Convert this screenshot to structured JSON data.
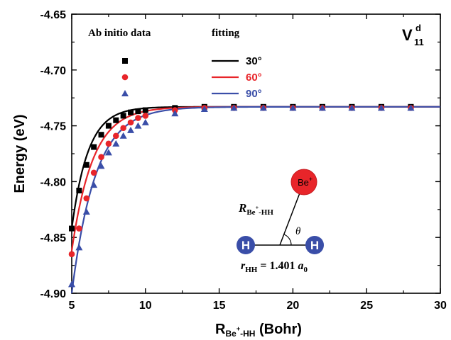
{
  "chart_data": {
    "type": "scatter",
    "xlabel_main": "R",
    "xlabel_sub": "Be",
    "xlabel_sub_sup": "+",
    "xlabel_sub_tail": "-HH",
    "xlabel_unit": " (Bohr)",
    "ylabel": "Energy (eV)",
    "xlim": [
      5,
      30
    ],
    "ylim": [
      -4.9,
      -4.65
    ],
    "xticks": [
      5,
      10,
      15,
      20,
      25,
      30
    ],
    "xtick_labels": [
      "5",
      "10",
      "15",
      "20",
      "25",
      "30"
    ],
    "yticks": [
      -4.9,
      -4.85,
      -4.8,
      -4.75,
      -4.7,
      -4.65
    ],
    "ytick_labels": [
      "-4.90",
      "-4.85",
      "-4.80",
      "-4.75",
      "-4.70",
      "-4.65"
    ],
    "grid": false,
    "legend_placement": "top-left",
    "legend_header_data": "Ab initio data",
    "legend_header_fit": "fitting",
    "corner_label_main": "V",
    "corner_label_sup": "d",
    "corner_label_sub": "11",
    "series": [
      {
        "name": "30°",
        "color": "#000000",
        "marker": "square",
        "points": [
          [
            5.0,
            -4.842
          ],
          [
            5.5,
            -4.808
          ],
          [
            6.0,
            -4.785
          ],
          [
            6.5,
            -4.769
          ],
          [
            7.0,
            -4.758
          ],
          [
            7.5,
            -4.75
          ],
          [
            8.0,
            -4.745
          ],
          [
            8.5,
            -4.741
          ],
          [
            9.0,
            -4.738
          ],
          [
            9.5,
            -4.737
          ],
          [
            10.0,
            -4.736
          ],
          [
            12.0,
            -4.734
          ],
          [
            14.0,
            -4.733
          ],
          [
            16.0,
            -4.733
          ],
          [
            18.0,
            -4.733
          ],
          [
            20.0,
            -4.733
          ],
          [
            22.0,
            -4.733
          ],
          [
            24.0,
            -4.733
          ],
          [
            26.0,
            -4.733
          ],
          [
            28.0,
            -4.733
          ]
        ],
        "fit_rate": 0.9
      },
      {
        "name": "60°",
        "color": "#e8252a",
        "marker": "circle",
        "points": [
          [
            5.0,
            -4.865
          ],
          [
            5.5,
            -4.842
          ],
          [
            6.0,
            -4.815
          ],
          [
            6.5,
            -4.792
          ],
          [
            7.0,
            -4.778
          ],
          [
            7.5,
            -4.766
          ],
          [
            8.0,
            -4.759
          ],
          [
            8.5,
            -4.752
          ],
          [
            9.0,
            -4.747
          ],
          [
            9.5,
            -4.743
          ],
          [
            10.0,
            -4.741
          ],
          [
            12.0,
            -4.736
          ],
          [
            14.0,
            -4.734
          ],
          [
            16.0,
            -4.734
          ],
          [
            18.0,
            -4.734
          ],
          [
            20.0,
            -4.734
          ],
          [
            22.0,
            -4.734
          ],
          [
            24.0,
            -4.734
          ],
          [
            26.0,
            -4.734
          ],
          [
            28.0,
            -4.734
          ]
        ],
        "fit_rate": 0.7
      },
      {
        "name": "90°",
        "color": "#3a4ea8",
        "marker": "triangle",
        "points": [
          [
            5.0,
            -4.892
          ],
          [
            5.5,
            -4.859
          ],
          [
            6.0,
            -4.827
          ],
          [
            6.5,
            -4.803
          ],
          [
            7.0,
            -4.786
          ],
          [
            7.5,
            -4.774
          ],
          [
            8.0,
            -4.766
          ],
          [
            8.5,
            -4.759
          ],
          [
            9.0,
            -4.754
          ],
          [
            9.5,
            -4.75
          ],
          [
            10.0,
            -4.747
          ],
          [
            12.0,
            -4.739
          ],
          [
            14.0,
            -4.735
          ],
          [
            16.0,
            -4.734
          ],
          [
            18.0,
            -4.734
          ],
          [
            20.0,
            -4.734
          ],
          [
            22.0,
            -4.734
          ],
          [
            24.0,
            -4.734
          ],
          [
            26.0,
            -4.734
          ],
          [
            28.0,
            -4.734
          ]
        ],
        "fit_rate": 0.62
      }
    ],
    "fit_start": [
      5.0,
      -4.842,
      -4.862,
      -4.9
    ],
    "fit_asymptote": -4.733,
    "inset": {
      "be_label": "Be",
      "be_sup": "+",
      "h_label": "H",
      "theta": "θ",
      "r_label_main": "R",
      "r_label_sub": "Be",
      "r_label_sub_sup": "+",
      "r_label_sub_tail": "-HH",
      "rhh_label": "r",
      "rhh_sub": "HH",
      "rhh_value": " = 1.401 ",
      "rhh_unit": "a",
      "rhh_unit_sub": "0",
      "atom_color_be": "#e8252a",
      "atom_color_h": "#3a4ea8"
    }
  }
}
